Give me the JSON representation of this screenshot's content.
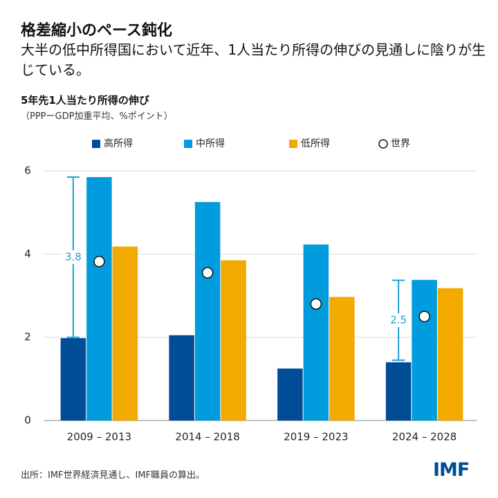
{
  "header": {
    "title": "格差縮小のペース鈍化",
    "subtitle": "大半の低中所得国において近年、1人当たり所得の伸びの見通しに陰りが生じている。"
  },
  "chart_data": {
    "type": "bar",
    "title": "5年先1人当たり所得の伸び",
    "subtitle": "（PPPーGDP加重平均、%ポイント）",
    "categories": [
      "2009 – 2013",
      "2014 – 2018",
      "2019 – 2023",
      "2024 – 2028"
    ],
    "series": [
      {
        "name": "高所得",
        "color": "#004c97",
        "values": [
          1.98,
          2.05,
          1.25,
          1.4
        ]
      },
      {
        "name": "中所得",
        "color": "#009cde",
        "values": [
          5.85,
          5.25,
          4.23,
          3.38
        ]
      },
      {
        "name": "低所得",
        "color": "#f2a900",
        "values": [
          4.18,
          3.85,
          2.97,
          3.18
        ]
      },
      {
        "name": "世界",
        "color": "#ffffff",
        "marker": "circle",
        "values": [
          3.82,
          3.55,
          2.8,
          2.5
        ]
      }
    ],
    "annotations": [
      {
        "x": "2009 – 2013",
        "from": 2.0,
        "to": 5.85,
        "label": 3.8,
        "color": "#1a9ed8"
      },
      {
        "x": "2024 – 2028",
        "from": 1.45,
        "to": 3.37,
        "label": 2.5,
        "color": "#1a9ed8"
      }
    ],
    "ylim": [
      0,
      6
    ],
    "yticks": [
      0,
      2,
      4,
      6
    ],
    "grid": true
  },
  "footer": {
    "source": "出所：IMF世界経済見通し、IMF職員の算出。",
    "logo": "IMF"
  }
}
